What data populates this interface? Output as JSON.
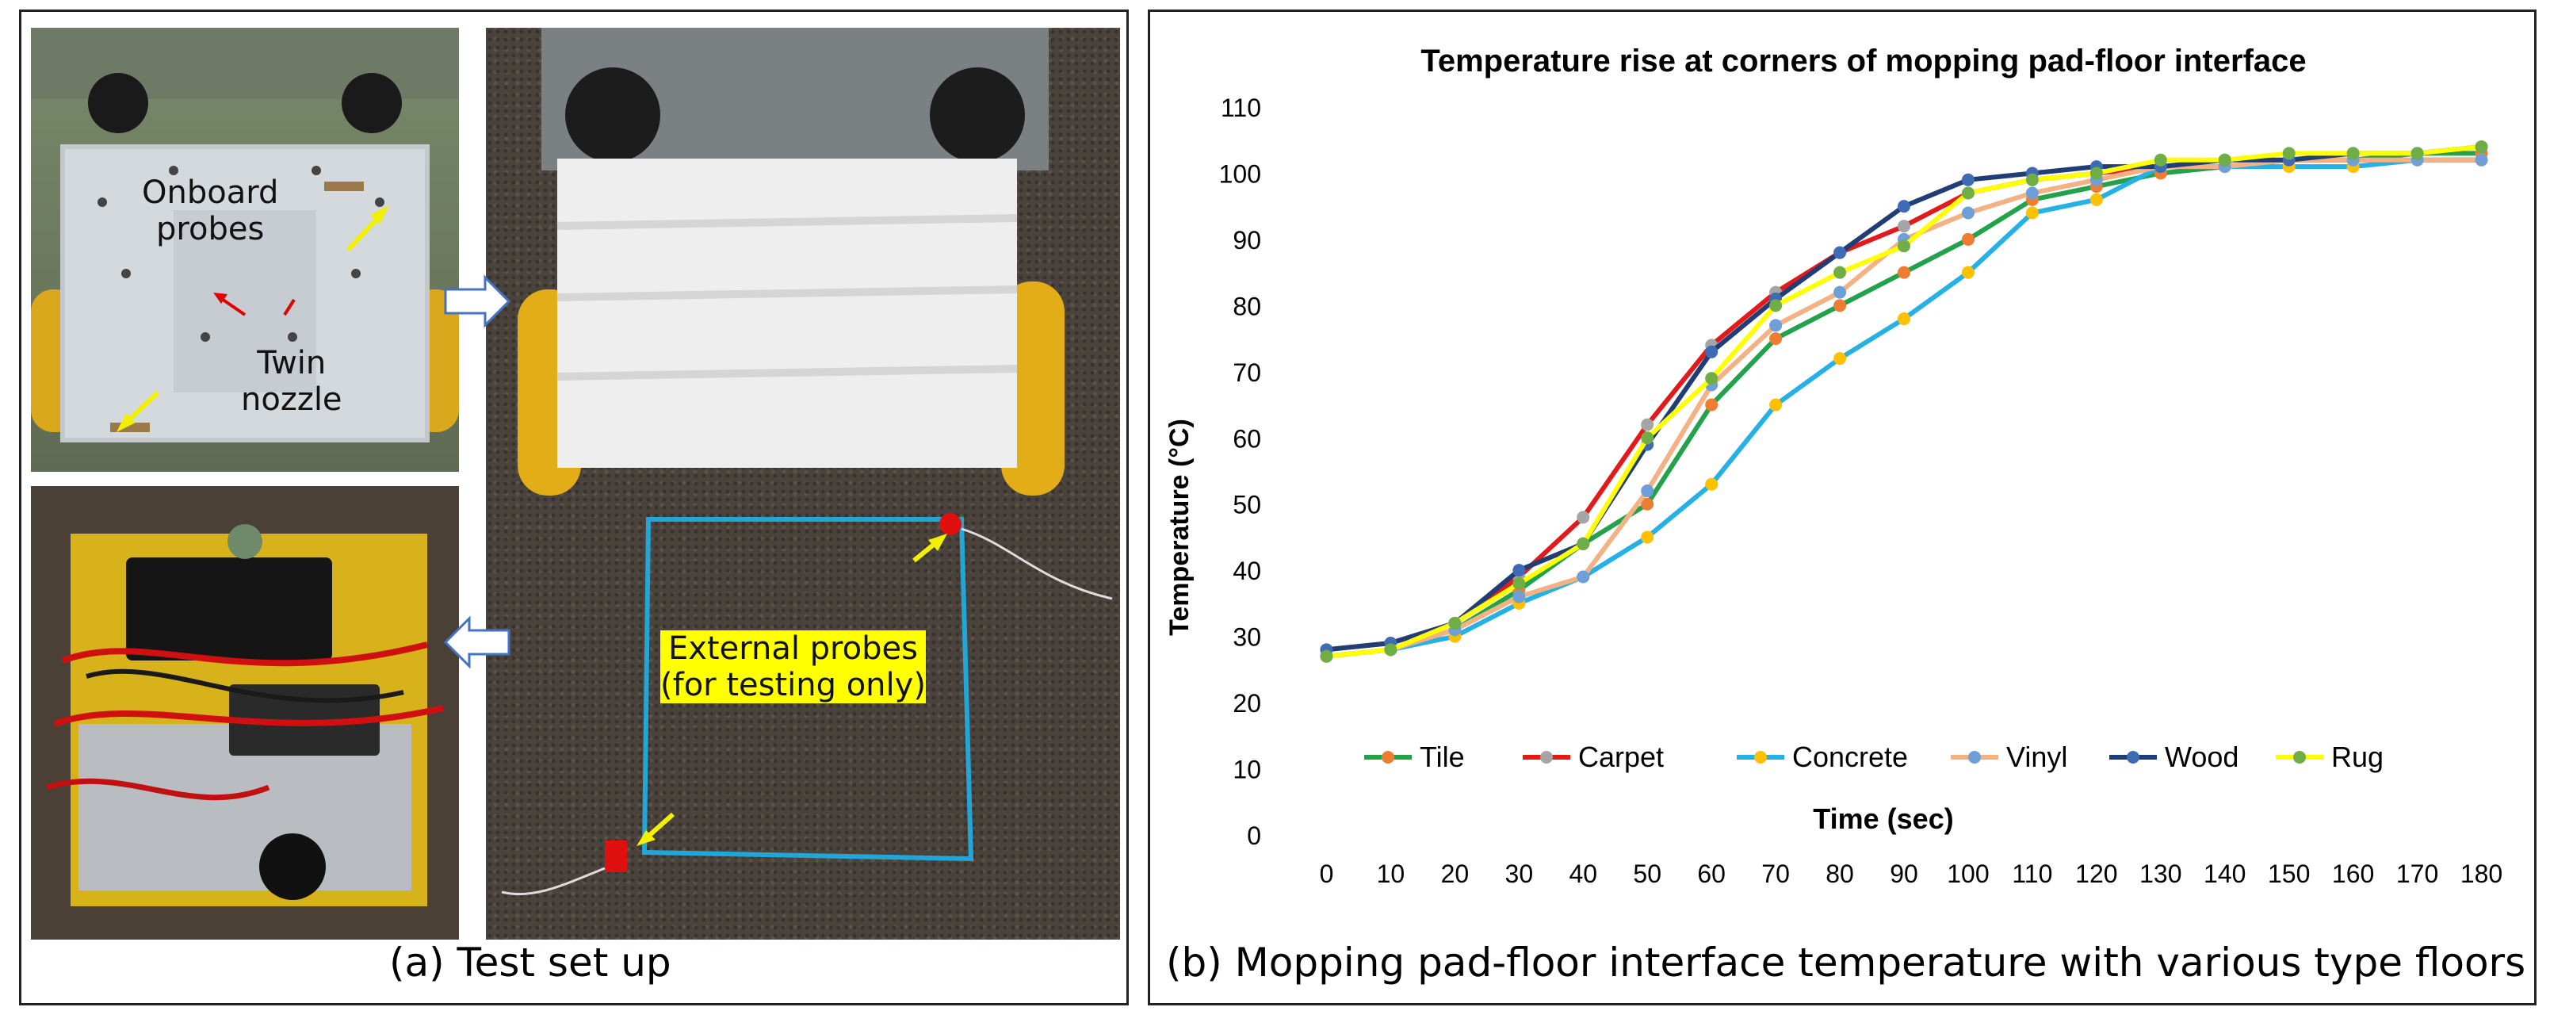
{
  "panel_a": {
    "caption": "(a) Test set up",
    "labels": {
      "onboard_probes_line1": "Onboard",
      "onboard_probes_line2": "probes",
      "twin_nozzle_line1": "Twin",
      "twin_nozzle_line2": "nozzle",
      "external_probes_line1": "External probes",
      "external_probes_line2": "(for testing only)"
    }
  },
  "panel_b": {
    "caption": "(b) Mopping pad-floor interface temperature with various type floors"
  },
  "chart_data": {
    "type": "line",
    "title": "Temperature rise at corners of mopping pad-floor interface",
    "xlabel": "Time (sec)",
    "ylabel": "Temperature (°C)",
    "x": [
      0,
      10,
      20,
      30,
      40,
      50,
      60,
      70,
      80,
      90,
      100,
      110,
      120,
      130,
      140,
      150,
      160,
      170,
      180
    ],
    "ylim": [
      0,
      110
    ],
    "yticks": [
      0,
      10,
      20,
      30,
      40,
      50,
      60,
      70,
      80,
      90,
      100,
      110
    ],
    "grid": false,
    "legend_position": "bottom-inside",
    "series": [
      {
        "name": "Tile",
        "line_color": "#22a24a",
        "marker_color": "#ee7d31",
        "values": [
          27,
          28,
          31,
          37,
          44,
          50,
          65,
          75,
          80,
          85,
          90,
          96,
          98,
          100,
          101,
          102,
          102,
          103,
          103
        ]
      },
      {
        "name": "Carpet",
        "line_color": "#e31a1c",
        "marker_color": "#a5a5a5",
        "values": [
          28,
          29,
          32,
          39,
          48,
          62,
          74,
          82,
          88,
          92,
          97,
          99,
          100,
          101,
          101,
          102,
          102,
          102,
          102
        ]
      },
      {
        "name": "Concrete",
        "line_color": "#25b0e6",
        "marker_color": "#ffc000",
        "values": [
          27,
          28,
          30,
          35,
          39,
          45,
          53,
          65,
          72,
          78,
          85,
          94,
          96,
          101,
          101,
          101,
          101,
          102,
          102
        ]
      },
      {
        "name": "Vinyl",
        "line_color": "#f4b183",
        "marker_color": "#6f9fd8",
        "values": [
          27,
          28,
          31,
          36,
          39,
          52,
          68,
          77,
          82,
          90,
          94,
          97,
          99,
          101,
          101,
          102,
          102,
          102,
          102
        ]
      },
      {
        "name": "Wood",
        "line_color": "#203e75",
        "marker_color": "#3f6bb5",
        "values": [
          28,
          29,
          32,
          40,
          44,
          59,
          73,
          81,
          88,
          95,
          99,
          100,
          101,
          101,
          102,
          102,
          103,
          103,
          104
        ]
      },
      {
        "name": "Rug",
        "line_color": "#ffff00",
        "marker_color": "#70ad47",
        "values": [
          27,
          28,
          32,
          38,
          44,
          60,
          69,
          80,
          85,
          89,
          97,
          99,
          100,
          102,
          102,
          103,
          103,
          103,
          104
        ]
      }
    ]
  }
}
